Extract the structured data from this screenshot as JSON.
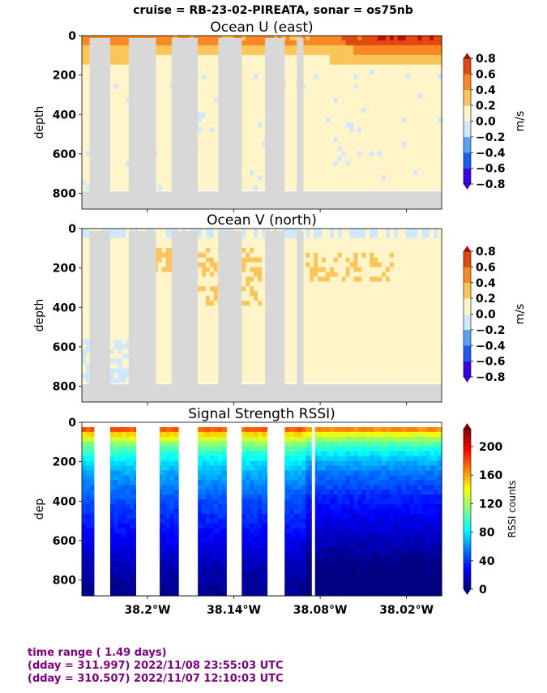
{
  "suptitle": "cruise = RB-23-02-PIREATA,  sonar = os75nb",
  "footer": {
    "line1": "time range ( 1.49 days)",
    "line2": "(dday = 311.997) 2022/11/08 23:55:03 UTC",
    "line3": "(dday = 310.507) 2022/11/07 12:10:03 UTC"
  },
  "colors": {
    "gap": "#d8d8d8",
    "footer_text": "#800080",
    "vel_levels": [
      "#3a00e6",
      "#1a5cf0",
      "#5aa0f5",
      "#cfe8fb",
      "#fff5c8",
      "#fbc559",
      "#f98822",
      "#e04a10",
      "#c40a0a"
    ]
  },
  "chart_data": [
    {
      "type": "heatmap",
      "title": "Ocean U (east)",
      "ylabel": "depth",
      "xlabel": "",
      "ylim": [
        880,
        0
      ],
      "yticks": [
        0,
        200,
        400,
        600,
        800
      ],
      "xlim": [
        -38.2456,
        -37.9956
      ],
      "xticks": [
        -38.2,
        -38.14,
        -38.08,
        -38.02
      ],
      "xticklabels": [
        "",
        "",
        "",
        ""
      ],
      "colorbar": {
        "label": "m/s",
        "ticks": [
          "0.8",
          "0.6",
          "0.4",
          "0.2",
          "0.0",
          "−0.2",
          "−0.4",
          "−0.6",
          "−0.8"
        ],
        "levels": [
          -0.8,
          -0.6,
          -0.4,
          -0.2,
          0.0,
          0.2,
          0.4,
          0.6,
          0.8
        ],
        "extend": "both"
      },
      "data_gaps_lon": [
        [
          -38.2402,
          -38.2259
        ],
        [
          -38.213,
          -38.194
        ],
        [
          -38.1832,
          -38.165
        ],
        [
          -38.1508,
          -38.1345
        ],
        [
          -38.1183,
          -38.1047
        ],
        [
          -38.0963,
          -38.0916
        ]
      ],
      "depth_bottom": 790,
      "surface_profile": [
        {
          "lon": -38.24,
          "u_0_50": 0.5,
          "u_50_100": 0.3,
          "u_100_150": 0.2
        },
        {
          "lon": -38.21,
          "u_0_50": 0.5,
          "u_50_100": 0.3,
          "u_100_150": 0.2
        },
        {
          "lon": -38.15,
          "u_0_50": 0.45,
          "u_50_100": 0.3,
          "u_100_150": 0.15
        },
        {
          "lon": -38.09,
          "u_0_50": 0.4,
          "u_50_100": 0.3,
          "u_100_150": 0.15
        },
        {
          "lon": -38.04,
          "u_0_50": 0.75,
          "u_50_100": 0.45,
          "u_100_150": 0.3
        },
        {
          "lon": -38.0,
          "u_0_50": 0.75,
          "u_50_100": 0.45,
          "u_100_150": 0.3
        }
      ],
      "below_150m_u": 0.05
    },
    {
      "type": "heatmap",
      "title": "Ocean V (north)",
      "ylabel": "depth",
      "xlabel": "",
      "ylim": [
        880,
        0
      ],
      "yticks": [
        0,
        200,
        400,
        600,
        800
      ],
      "xlim": [
        -38.2456,
        -37.9956
      ],
      "xticks": [
        -38.2,
        -38.14,
        -38.08,
        -38.02
      ],
      "xticklabels": [
        "",
        "",
        "",
        ""
      ],
      "colorbar": {
        "label": "m/s",
        "ticks": [
          "0.8",
          "0.6",
          "0.4",
          "0.2",
          "0.0",
          "−0.2",
          "−0.4",
          "−0.6",
          "−0.8"
        ],
        "levels": [
          -0.8,
          -0.6,
          -0.4,
          -0.2,
          0.0,
          0.2,
          0.4,
          0.6,
          0.8
        ],
        "extend": "both"
      },
      "data_gaps_lon": [
        [
          -38.2402,
          -38.2259
        ],
        [
          -38.213,
          -38.194
        ],
        [
          -38.1832,
          -38.165
        ],
        [
          -38.1508,
          -38.1345
        ],
        [
          -38.1183,
          -38.1047
        ],
        [
          -38.0963,
          -38.0916
        ]
      ],
      "depth_bottom": 790,
      "surface_v": -0.15,
      "background_v": 0.05,
      "positive_band_v": 0.25
    },
    {
      "type": "heatmap",
      "title": "Signal Strength RSSI)",
      "ylabel": "dep",
      "xlabel": "",
      "ylim": [
        880,
        0
      ],
      "yticks": [
        0,
        200,
        400,
        600,
        800
      ],
      "xlim": [
        -38.2456,
        -37.9956
      ],
      "xticks": [
        -38.2,
        -38.14,
        -38.08,
        -38.02
      ],
      "xticklabels": [
        "38.2°W",
        "38.14°W",
        "38.08°W",
        "38.02°W"
      ],
      "colorbar": {
        "label": "RSSI counts",
        "range": [
          0,
          225
        ],
        "ticks": [
          "200",
          "160",
          "120",
          "80",
          "40",
          "0"
        ],
        "tick_values": [
          200,
          160,
          120,
          80,
          40,
          0
        ],
        "extend": "both"
      },
      "data_gaps_lon": [
        [
          -38.2369,
          -38.2259
        ],
        [
          -38.2079,
          -38.1915
        ],
        [
          -38.1782,
          -38.165
        ],
        [
          -38.1449,
          -38.1345
        ],
        [
          -38.1166,
          -38.1047
        ],
        [
          -38.0858,
          -38.0836
        ]
      ],
      "rssi_profile": [
        {
          "depth": 30,
          "rssi": 185
        },
        {
          "depth": 60,
          "rssi": 150
        },
        {
          "depth": 100,
          "rssi": 120
        },
        {
          "depth": 150,
          "rssi": 95
        },
        {
          "depth": 200,
          "rssi": 80
        },
        {
          "depth": 260,
          "rssi": 65
        },
        {
          "depth": 330,
          "rssi": 55
        },
        {
          "depth": 400,
          "rssi": 45
        },
        {
          "depth": 500,
          "rssi": 35
        },
        {
          "depth": 600,
          "rssi": 25
        },
        {
          "depth": 700,
          "rssi": 15
        },
        {
          "depth": 800,
          "rssi": 8
        },
        {
          "depth": 880,
          "rssi": 3
        }
      ]
    }
  ]
}
